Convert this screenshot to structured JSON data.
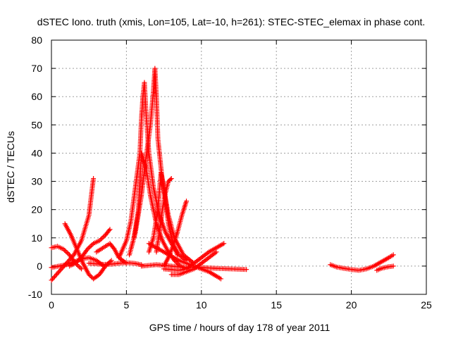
{
  "chart_data": {
    "type": "scatter",
    "title": "dSTEC Iono. truth (xmis, Lon=105, Lat=-10, h=261): STEC-STEC_elemax in phase cont.",
    "xlabel": "GPS time / hours of day 178 of year 2011",
    "ylabel": "dSTEC  / TECUs",
    "xlim": [
      0,
      25
    ],
    "ylim": [
      -10,
      80
    ],
    "xticks": [
      "0",
      "5",
      "10",
      "15",
      "20",
      "25"
    ],
    "yticks": [
      "-10",
      "0",
      "10",
      "20",
      "30",
      "40",
      "50",
      "60",
      "70",
      "80"
    ],
    "grid": true,
    "marker": "+",
    "color": "#ff0000",
    "series": [
      {
        "x": [
          0.0,
          0.5,
          1.0,
          1.5,
          2.0,
          2.5,
          2.8
        ],
        "y": [
          -5,
          -2,
          1,
          4,
          9,
          18,
          31
        ]
      },
      {
        "x": [
          0.0,
          0.4,
          0.8,
          1.2,
          1.6,
          2.0
        ],
        "y": [
          6.5,
          7,
          6,
          4,
          1,
          -1
        ]
      },
      {
        "x": [
          0.0,
          0.5,
          1.0,
          1.5,
          2.0,
          2.5,
          3.0,
          3.5
        ],
        "y": [
          -0.5,
          0,
          0.5,
          1.5,
          2.5,
          3,
          2,
          0
        ]
      },
      {
        "x": [
          0.9,
          1.3,
          1.7,
          2.1,
          2.5,
          2.8,
          3.2,
          3.6,
          4.0
        ],
        "y": [
          15,
          11,
          6,
          1,
          -3,
          -4.5,
          -3,
          0,
          2
        ]
      },
      {
        "x": [
          1.2,
          1.6,
          2.0,
          2.4,
          2.8,
          3.2,
          3.6,
          3.9
        ],
        "y": [
          0,
          1,
          3,
          6,
          8,
          9,
          11,
          13
        ]
      },
      {
        "x": [
          3.0,
          3.3,
          3.6,
          3.9,
          4.2,
          4.5,
          5.0
        ],
        "y": [
          5,
          6,
          7,
          8,
          6,
          3,
          1
        ]
      },
      {
        "x": [
          2.5,
          3.0,
          3.5,
          4.0,
          4.5,
          5.0,
          5.5,
          6.0
        ],
        "y": [
          1,
          0.8,
          0.6,
          0.7,
          1,
          1.2,
          1.0,
          0.5
        ]
      },
      {
        "x": [
          4.5,
          5.0,
          5.3,
          5.6,
          5.9,
          6.0,
          6.1,
          6.2,
          6.3,
          6.5,
          6.8,
          7.2,
          7.6,
          8.0,
          8.5,
          9.0
        ],
        "y": [
          3,
          9,
          16,
          28,
          40,
          52,
          60,
          65,
          55,
          40,
          28,
          18,
          12,
          8,
          4,
          2
        ]
      },
      {
        "x": [
          5.2,
          5.6,
          6.0,
          6.3,
          6.6,
          6.8,
          6.9,
          7.0,
          7.1,
          7.4,
          7.8,
          8.2,
          8.8,
          9.5
        ],
        "y": [
          4,
          12,
          25,
          38,
          50,
          62,
          70,
          60,
          45,
          30,
          18,
          10,
          4,
          1
        ]
      },
      {
        "x": [
          5.5,
          5.8,
          6.0,
          6.3,
          6.6,
          7.0,
          7.4,
          7.8,
          8.2,
          8.6,
          9.0
        ],
        "y": [
          10,
          20,
          40,
          35,
          25,
          15,
          9,
          5,
          2,
          0,
          -1
        ]
      },
      {
        "x": [
          6.5,
          6.8,
          7.1,
          7.3,
          7.5,
          7.8,
          8.1,
          8.4
        ],
        "y": [
          5,
          10,
          20,
          33,
          28,
          15,
          8,
          4
        ]
      },
      {
        "x": [
          7.0,
          7.2,
          7.4,
          7.6,
          7.8,
          8.0
        ],
        "y": [
          5,
          12,
          20,
          26,
          30,
          31
        ]
      },
      {
        "x": [
          7.5,
          7.8,
          8.1,
          8.4,
          8.7,
          9.0
        ],
        "y": [
          0,
          3,
          7,
          12,
          18,
          23
        ]
      },
      {
        "x": [
          6.0,
          7.0,
          8.0,
          9.0,
          10.0,
          11.0,
          12.0,
          13.0
        ],
        "y": [
          0,
          0.5,
          0,
          -0.5,
          -0.5,
          -0.8,
          -1,
          -1.2
        ]
      },
      {
        "x": [
          6.5,
          7.5,
          8.5,
          9.5,
          10.5,
          11.3
        ],
        "y": [
          8,
          5,
          2,
          0,
          -2,
          -4.5
        ]
      },
      {
        "x": [
          7.5,
          8.5,
          9.0,
          9.5,
          10.0,
          10.5,
          11.0,
          11.5
        ],
        "y": [
          -1,
          -1.5,
          -1,
          1,
          3,
          5,
          6.5,
          8
        ]
      },
      {
        "x": [
          8.0,
          8.5,
          9.0,
          9.5,
          10.0,
          10.5,
          11.0
        ],
        "y": [
          -3,
          -3,
          -2,
          -1,
          1,
          3,
          5
        ]
      },
      {
        "x": [
          18.6,
          19.0,
          19.5,
          20.0,
          20.5,
          21.0,
          21.5,
          22.0,
          22.5,
          22.8
        ],
        "y": [
          0.5,
          -0.3,
          -0.8,
          -1.2,
          -1.5,
          -1.0,
          0,
          1.5,
          3,
          4
        ]
      },
      {
        "x": [
          21.7,
          22.0,
          22.4,
          22.8
        ],
        "y": [
          -1.5,
          -0.8,
          -0.3,
          0
        ]
      }
    ]
  }
}
